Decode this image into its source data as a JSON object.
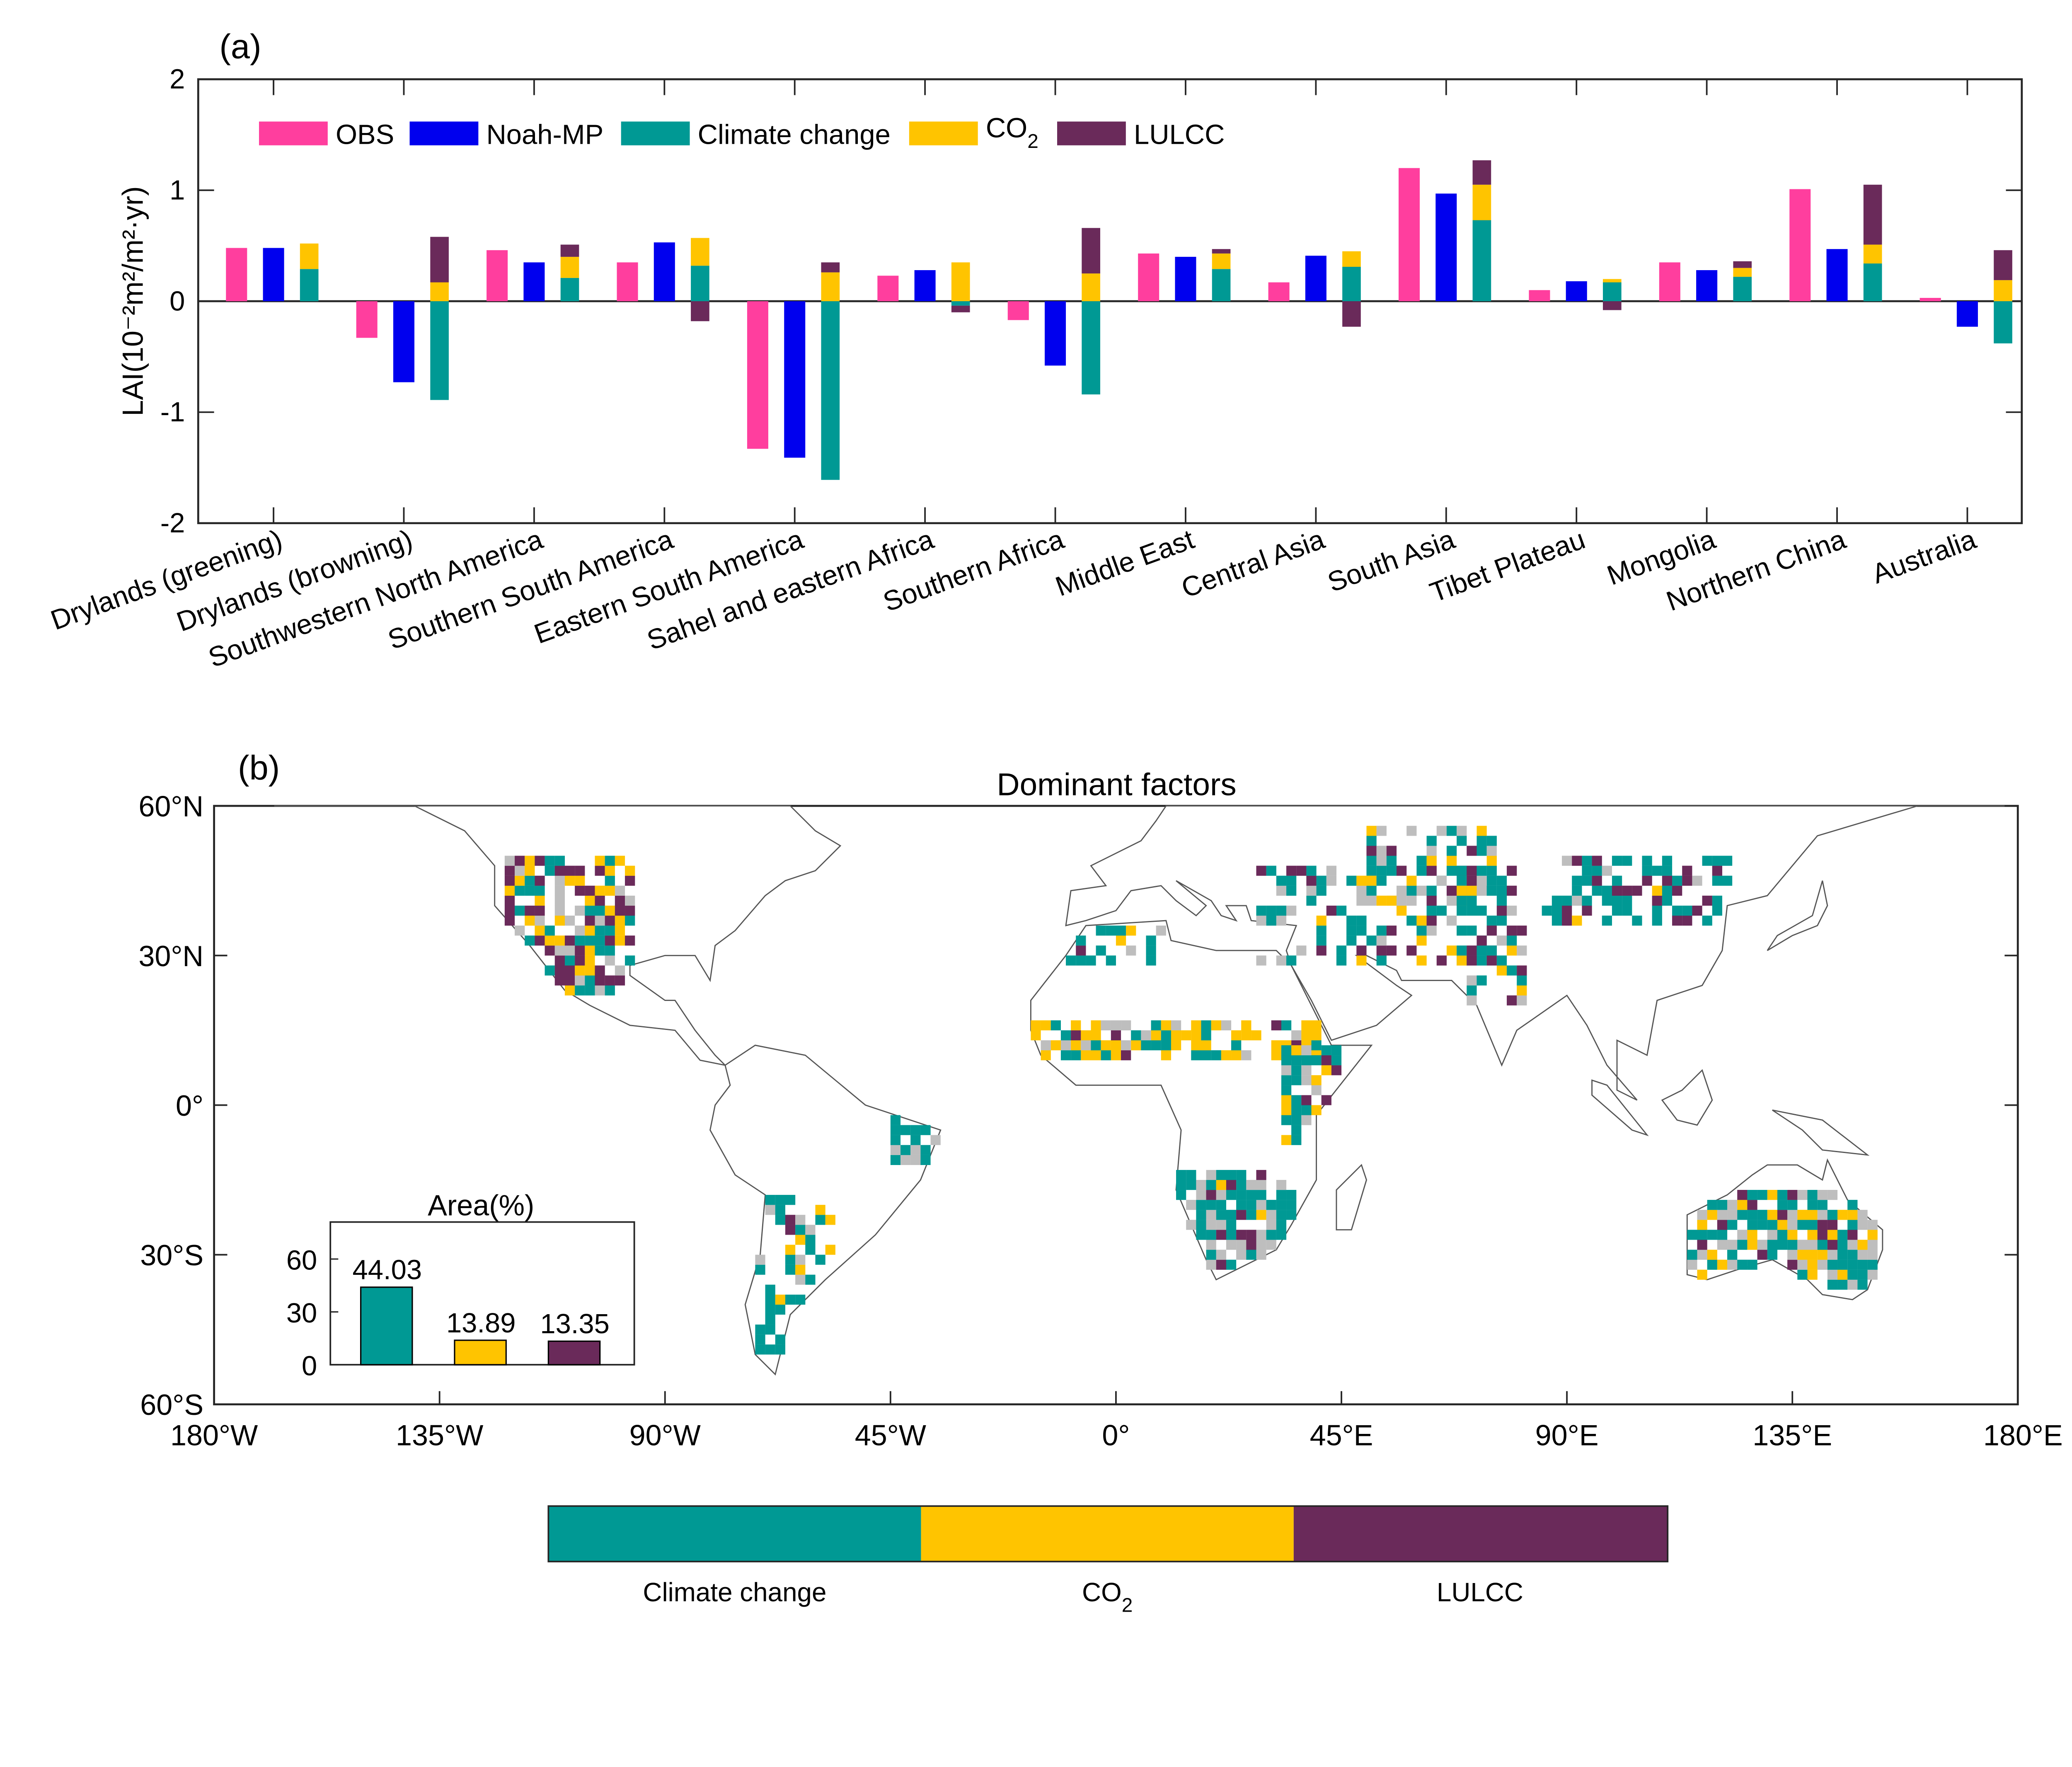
{
  "colors": {
    "OBS": "#FF3E9E",
    "Noah-MP": "#0000EE",
    "Climate change": "#009994",
    "CO2": "#FFC400",
    "LULCC": "#6A2A5A",
    "gray": "#BEBEBE"
  },
  "chart_data": [
    {
      "type": "bar",
      "panel_label": "(a)",
      "ylabel": "LAI(10⁻²m²/m²·yr)",
      "ylim": [
        -2,
        2
      ],
      "yticks": [
        "-2",
        "-1",
        "0",
        "1",
        "2"
      ],
      "legend": {
        "placement": "top-left",
        "entries": [
          "OBS",
          "Noah-MP",
          "Climate change",
          "CO",
          "LULCC"
        ],
        "co2_sub": "2"
      },
      "categories": [
        "Drylands (greening)",
        "Drylands (browning)",
        "Southwestern North America",
        "Southern South America",
        "Eastern South America",
        "Sahel and eastern Africa",
        "Southern Africa",
        "Middle East",
        "Central Asia",
        "South Asia",
        "Tibet Plateau",
        "Mongolia",
        "Northern China",
        "Australia"
      ],
      "series": [
        {
          "name": "OBS",
          "values": [
            0.48,
            -0.33,
            0.46,
            0.35,
            -1.33,
            0.23,
            -0.17,
            0.43,
            0.17,
            1.2,
            0.1,
            0.35,
            1.01,
            0.03
          ]
        },
        {
          "name": "Noah-MP",
          "values": [
            0.48,
            -0.73,
            0.35,
            0.53,
            -1.41,
            0.28,
            -0.58,
            0.4,
            0.41,
            0.97,
            0.18,
            0.28,
            0.47,
            -0.23
          ]
        },
        {
          "name": "Climate change",
          "stack": "attribution",
          "values": [
            0.29,
            -0.89,
            0.21,
            0.32,
            -1.61,
            -0.04,
            -0.84,
            0.29,
            0.31,
            0.73,
            0.17,
            0.22,
            0.34,
            -0.38
          ]
        },
        {
          "name": "CO2",
          "stack": "attribution",
          "values": [
            0.23,
            0.17,
            0.19,
            0.25,
            0.26,
            0.35,
            0.25,
            0.14,
            0.14,
            0.32,
            0.03,
            0.08,
            0.17,
            0.19
          ]
        },
        {
          "name": "LULCC",
          "stack": "attribution",
          "values": [
            0.0,
            0.41,
            0.11,
            -0.18,
            0.09,
            -0.06,
            0.41,
            0.04,
            -0.23,
            0.22,
            -0.08,
            0.06,
            0.54,
            0.27
          ]
        }
      ]
    },
    {
      "type": "heatmap",
      "panel_label": "(b)",
      "title": "Dominant factors",
      "xticks": [
        "180°W",
        "135°W",
        "90°W",
        "45°W",
        "0°",
        "45°E",
        "90°E",
        "135°E",
        "180°E"
      ],
      "yticks": [
        "60°N",
        "30°N",
        "0°",
        "30°S",
        "60°S"
      ],
      "xlim": [
        -180,
        180
      ],
      "ylim": [
        -60,
        60
      ],
      "colorbar": {
        "labels": [
          "Climate change",
          "CO",
          "LULCC"
        ],
        "co2_sub": "2"
      }
    },
    {
      "type": "bar",
      "title": "Area(%)",
      "categories": [
        "Climate change",
        "CO2",
        "LULCC"
      ],
      "values": [
        44.03,
        13.89,
        13.35
      ],
      "value_labels": [
        "44.03",
        "13.89",
        "13.35"
      ],
      "yticks": [
        "0",
        "30",
        "60"
      ],
      "ylim": [
        0,
        80
      ]
    }
  ]
}
